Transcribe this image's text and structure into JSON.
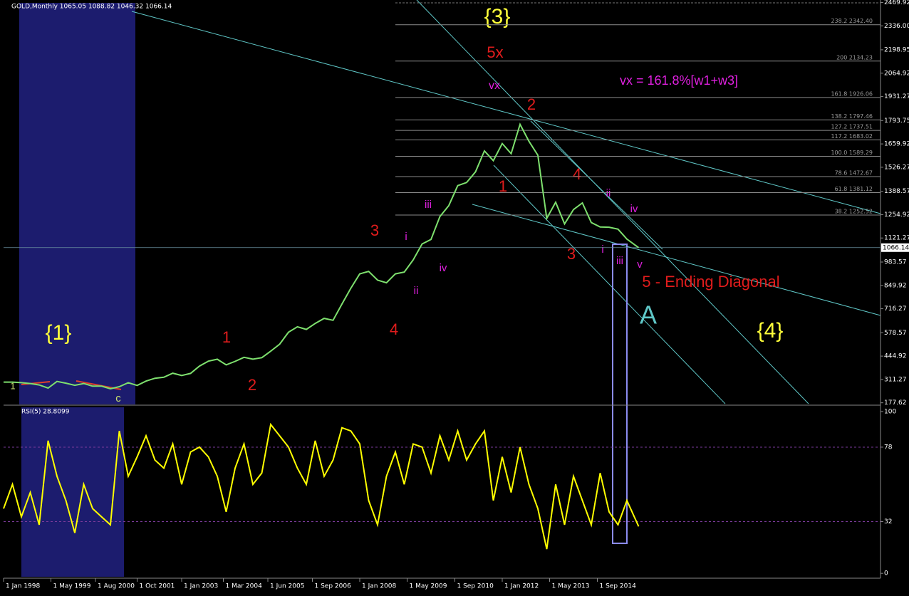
{
  "chart_data": [
    {
      "type": "line",
      "title": "GOLD,Monthly 1065.05 1088.82 1046.32 1066.14",
      "x": [
        1998,
        1998.25,
        1998.5,
        1998.75,
        1999,
        1999.25,
        1999.5,
        1999.75,
        2000,
        2000.25,
        2000.5,
        2000.75,
        2001,
        2001.25,
        2001.5,
        2001.75,
        2002,
        2002.25,
        2002.5,
        2002.75,
        2003,
        2003.25,
        2003.5,
        2003.75,
        2004,
        2004.25,
        2004.5,
        2004.75,
        2005,
        2005.25,
        2005.5,
        2005.75,
        2006,
        2006.25,
        2006.5,
        2006.75,
        2007,
        2007.25,
        2007.5,
        2007.75,
        2008,
        2008.25,
        2008.5,
        2008.75,
        2009,
        2009.25,
        2009.5,
        2009.75,
        2010,
        2010.25,
        2010.5,
        2010.75,
        2011,
        2011.25,
        2011.5,
        2011.75,
        2012,
        2012.25,
        2012.5,
        2012.75,
        2013,
        2013.25,
        2013.5,
        2013.75,
        2014,
        2014.25,
        2014.5,
        2014.75,
        2015,
        2015.25,
        2015.5,
        2015.83
      ],
      "values": [
        296,
        296,
        293,
        288,
        280,
        262,
        300,
        290,
        278,
        288,
        273,
        273,
        258,
        270,
        293,
        277,
        302,
        318,
        324,
        347,
        334,
        346,
        388,
        416,
        427,
        395,
        415,
        438,
        428,
        436,
        473,
        513,
        582,
        613,
        598,
        632,
        661,
        650,
        743,
        834,
        916,
        930,
        880,
        865,
        916,
        926,
        996,
        1087,
        1113,
        1244,
        1307,
        1421,
        1439,
        1500,
        1620,
        1564,
        1662,
        1604,
        1772,
        1675,
        1595,
        1234,
        1326,
        1202,
        1284,
        1322,
        1210,
        1184,
        1183,
        1172,
        1115,
        1066
      ],
      "color": "#7ee06e",
      "xlim": [
        1998,
        2022.62
      ],
      "xticks": [
        {
          "value": 1998,
          "label": "1 Jan 1998"
        },
        {
          "value": 1999.33,
          "label": "1 May 1999"
        },
        {
          "value": 2000.58,
          "label": "1 Aug 2000"
        },
        {
          "value": 2001.75,
          "label": "1 Oct 2001"
        },
        {
          "value": 2003,
          "label": "1 Jan 2003"
        },
        {
          "value": 2004.17,
          "label": "1 Mar 2004"
        },
        {
          "value": 2005.42,
          "label": "1 Jun 2005"
        },
        {
          "value": 2006.67,
          "label": "1 Sep 2006"
        },
        {
          "value": 2008,
          "label": "1 Jan 2008"
        },
        {
          "value": 2009.33,
          "label": "1 May 2009"
        },
        {
          "value": 2010.67,
          "label": "1 Sep 2010"
        },
        {
          "value": 2012,
          "label": "1 Jan 2012"
        },
        {
          "value": 2013.33,
          "label": "1 May 2013"
        },
        {
          "value": 2014.67,
          "label": "1 Sep 2014"
        }
      ],
      "ylim": [
        160,
        2484
      ],
      "yticks": [
        2469.92,
        {
          "value": 2336,
          "label": "2336.00"
        },
        2198.95,
        2064.92,
        1931.27,
        1793.75,
        1659.92,
        1526.27,
        1388.57,
        1254.92,
        1121.27,
        983.57,
        849.92,
        716.27,
        578.57,
        444.92,
        311.27,
        177.62
      ],
      "last_price": 1066.14,
      "levels": [
        {
          "value": 2342.4,
          "label": "238.2 2342.40"
        },
        {
          "value": 2134.23,
          "label": "200 2134.23"
        },
        {
          "value": 1926.06,
          "label": "161.8 1926.06"
        },
        {
          "value": 1797.46,
          "label": "138.2 1797.46"
        },
        {
          "value": 1737.51,
          "label": "127.2 1737.51"
        },
        {
          "value": 1683.02,
          "label": "117.2 1683.02"
        },
        {
          "value": 1589.29,
          "label": "100.0 1589.29"
        },
        {
          "value": 1472.67,
          "label": "78.6 1472.67"
        },
        {
          "value": 1381.12,
          "label": "61.8 1381.12"
        },
        {
          "value": 1252.52,
          "label": "38.2 1252.52"
        }
      ],
      "annotations": [
        "{3}",
        "5x",
        "vx",
        "2",
        "vx = 161.8%[w1+w3]",
        "1",
        "4",
        "ii",
        "iv",
        "iii",
        "3",
        "i",
        "iv",
        "ii",
        "4",
        "3",
        "i",
        "iii",
        "v",
        "5 - Ending Diagonal",
        "A",
        "{4}",
        "{1}",
        "1",
        "2",
        "c",
        "1"
      ]
    },
    {
      "type": "line",
      "title": "RSI(5) 28.8099",
      "x": [
        1998,
        1998.25,
        1998.5,
        1998.75,
        1999,
        1999.25,
        1999.5,
        1999.75,
        2000,
        2000.25,
        2000.5,
        2000.75,
        2001,
        2001.25,
        2001.5,
        2001.75,
        2002,
        2002.25,
        2002.5,
        2002.75,
        2003,
        2003.25,
        2003.5,
        2003.75,
        2004,
        2004.25,
        2004.5,
        2004.75,
        2005,
        2005.25,
        2005.5,
        2005.75,
        2006,
        2006.25,
        2006.5,
        2006.75,
        2007,
        2007.25,
        2007.5,
        2007.75,
        2008,
        2008.25,
        2008.5,
        2008.75,
        2009,
        2009.25,
        2009.5,
        2009.75,
        2010,
        2010.25,
        2010.5,
        2010.75,
        2011,
        2011.25,
        2011.5,
        2011.75,
        2012,
        2012.25,
        2012.5,
        2012.75,
        2013,
        2013.25,
        2013.5,
        2013.75,
        2014,
        2014.25,
        2014.5,
        2014.75,
        2015,
        2015.25,
        2015.5,
        2015.83
      ],
      "values": [
        40,
        55,
        35,
        50,
        30,
        82,
        60,
        45,
        25,
        55,
        40,
        35,
        30,
        88,
        60,
        72,
        85,
        70,
        65,
        80,
        55,
        75,
        78,
        72,
        60,
        38,
        65,
        80,
        55,
        62,
        92,
        85,
        78,
        65,
        55,
        82,
        60,
        70,
        90,
        88,
        80,
        45,
        30,
        60,
        75,
        55,
        80,
        78,
        62,
        85,
        70,
        88,
        70,
        80,
        88,
        45,
        72,
        50,
        78,
        55,
        40,
        15,
        55,
        30,
        60,
        45,
        30,
        62,
        38,
        30,
        45,
        29
      ],
      "color": "#ffff00",
      "xlim": [
        1998,
        2022.62
      ],
      "ylim": [
        -3,
        103.5
      ],
      "yticks": [
        100,
        78,
        32,
        0
      ]
    }
  ]
}
